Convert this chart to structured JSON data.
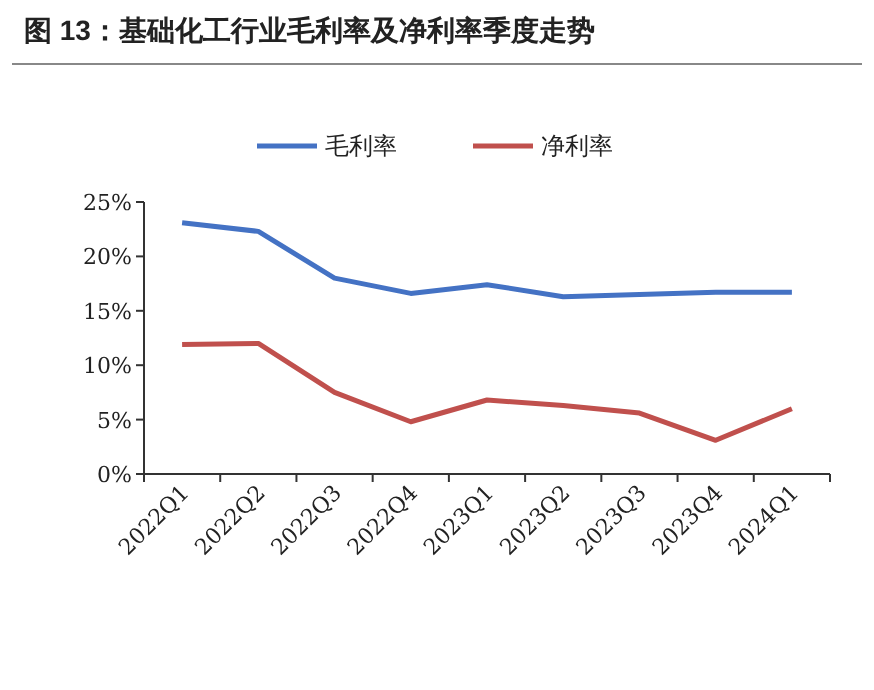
{
  "chart_data": {
    "type": "line",
    "title": "图 13：基础化工行业毛利率及净利率季度走势",
    "categories": [
      "2022Q1",
      "2022Q2",
      "2022Q3",
      "2022Q4",
      "2023Q1",
      "2023Q2",
      "2023Q3",
      "2023Q4",
      "2024Q1"
    ],
    "series": [
      {
        "name": "毛利率",
        "color": "#4472c4",
        "values": [
          23.1,
          22.3,
          18.0,
          16.6,
          17.4,
          16.3,
          16.5,
          16.7,
          16.7
        ]
      },
      {
        "name": "净利率",
        "color": "#c0504d",
        "values": [
          11.9,
          12.0,
          7.5,
          4.8,
          6.8,
          6.3,
          5.6,
          3.1,
          6.0
        ]
      }
    ],
    "ylim": [
      0,
      25
    ],
    "yticks": [
      {
        "value": 0,
        "label": "0%"
      },
      {
        "value": 5,
        "label": "5%"
      },
      {
        "value": 10,
        "label": "10%"
      },
      {
        "value": 15,
        "label": "15%"
      },
      {
        "value": 20,
        "label": "20%"
      },
      {
        "value": 25,
        "label": "25%"
      }
    ],
    "legend": "top",
    "grid": false
  }
}
